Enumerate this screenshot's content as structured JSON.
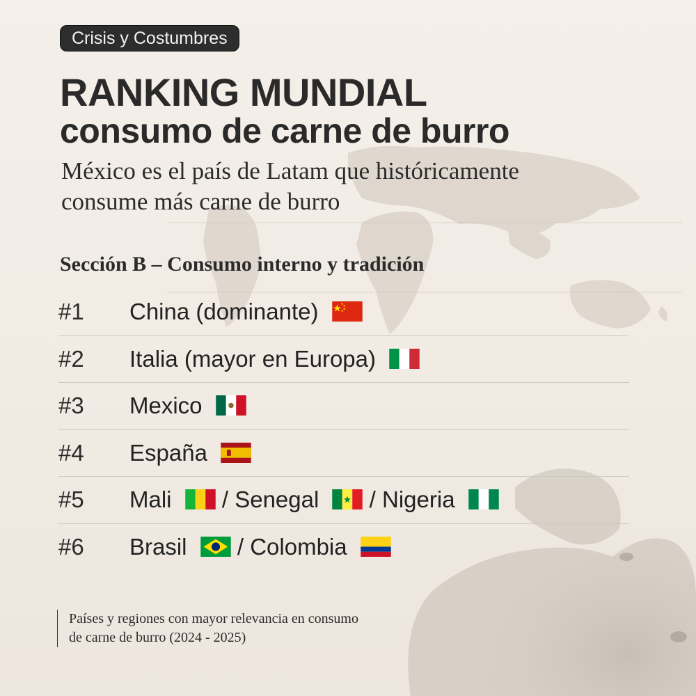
{
  "tag": "Crisis y Costumbres",
  "title_line1": "RANKING MUNDIAL",
  "title_line2": "consumo de carne de burro",
  "subtitle_lines": [
    "México es el país de Latam que históricamente",
    "consume más carne de burro"
  ],
  "section_heading": "Sección B – Consumo interno y tradición",
  "ranking": [
    {
      "rank": "#1",
      "entries": [
        {
          "name": "China (dominante)",
          "flag": "china-flag-icon"
        }
      ]
    },
    {
      "rank": "#2",
      "entries": [
        {
          "name": "Italia (mayor en Europa)",
          "flag": "italy-flag-icon"
        }
      ]
    },
    {
      "rank": "#3",
      "entries": [
        {
          "name": "Mexico",
          "flag": "mexico-flag-icon"
        }
      ]
    },
    {
      "rank": "#4",
      "entries": [
        {
          "name": "España",
          "flag": "spain-flag-icon"
        }
      ]
    },
    {
      "rank": "#5",
      "entries": [
        {
          "name": "Mali",
          "flag": "mali-flag-icon"
        },
        {
          "name": "Senegal",
          "flag": "senegal-flag-icon"
        },
        {
          "name": "Nigeria",
          "flag": "nigeria-flag-icon"
        }
      ]
    },
    {
      "rank": "#6",
      "entries": [
        {
          "name": "Brasil",
          "flag": "brazil-flag-icon"
        },
        {
          "name": "Colombia",
          "flag": "colombia-flag-icon"
        }
      ]
    }
  ],
  "separator": "/",
  "footnote_lines": [
    "Países y regiones con mayor relevancia en consumo",
    "de carne de burro (2024 - 2025)"
  ]
}
